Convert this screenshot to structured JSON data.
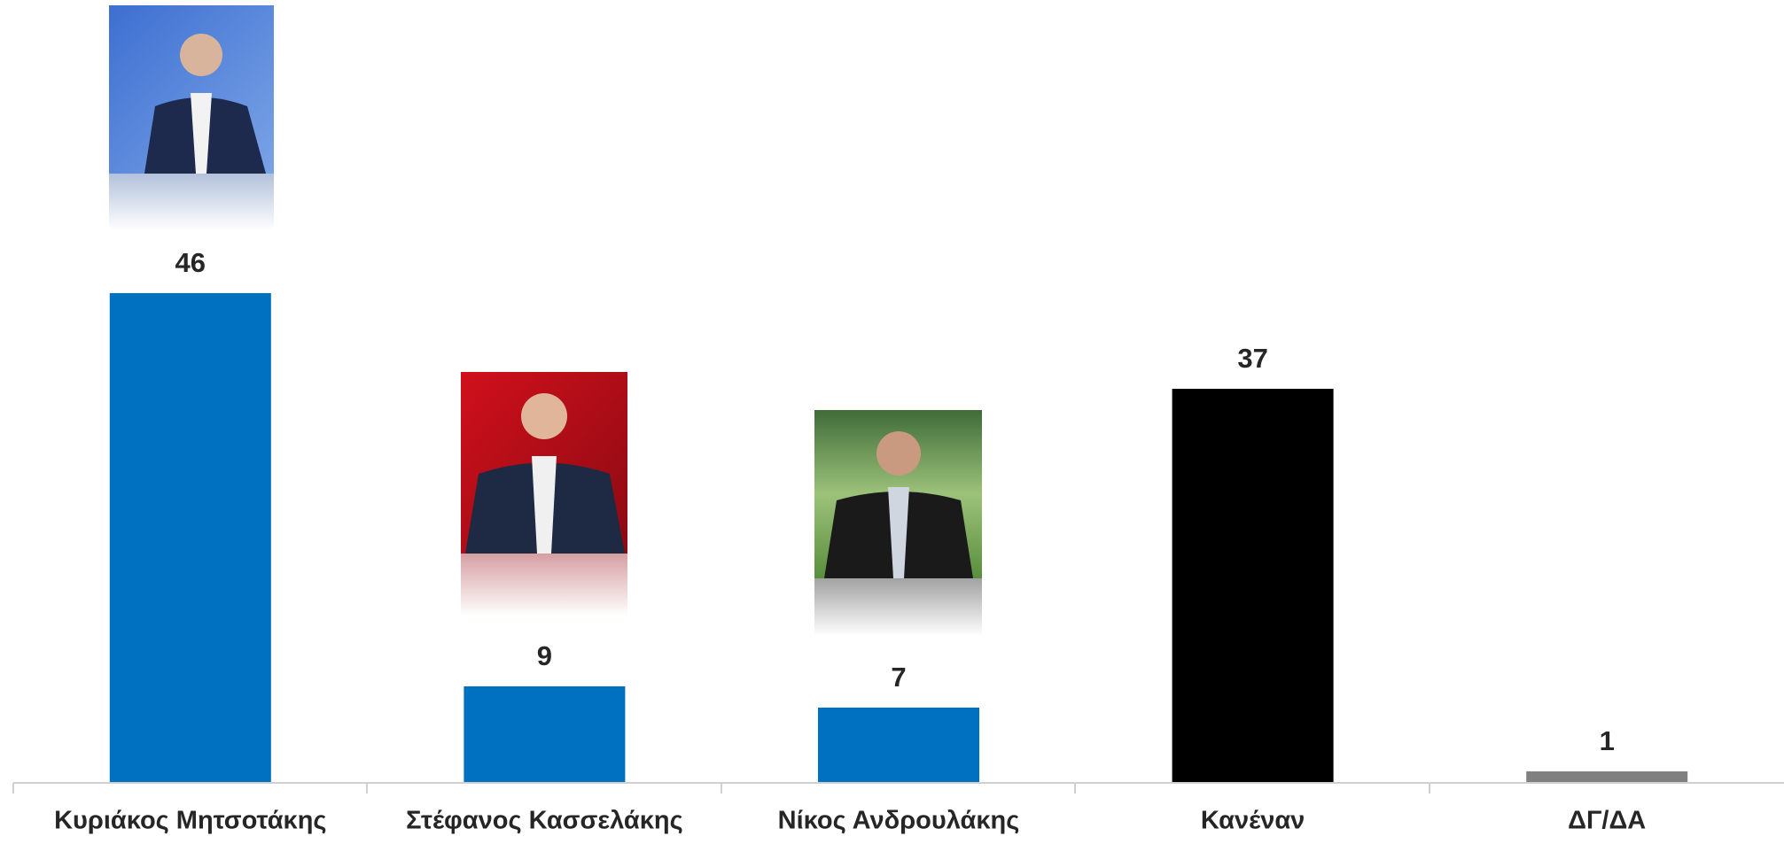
{
  "chart_data": {
    "type": "bar",
    "categories": [
      "Κυριάκος Μητσοτάκης",
      "Στέφανος Κασσελάκης",
      "Νίκος Ανδρουλάκης",
      "Κανέναν",
      "ΔΓ/ΔΑ"
    ],
    "values": [
      46,
      9,
      7,
      37,
      1
    ],
    "colors": [
      "#0070c0",
      "#0070c0",
      "#0070c0",
      "#000000",
      "#808080"
    ]
  }
}
